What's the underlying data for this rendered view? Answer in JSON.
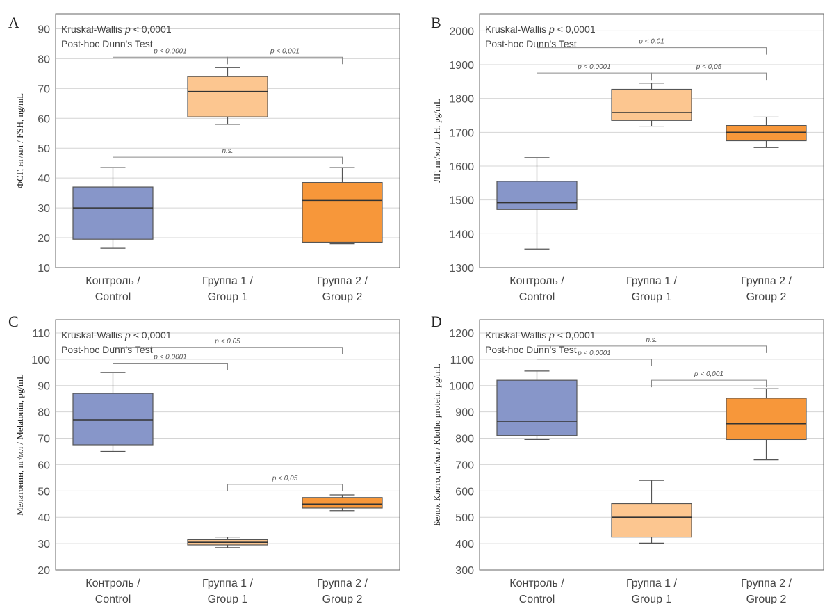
{
  "colors": {
    "control": "#8796c9",
    "group1": "#fcc690",
    "group2": "#f7973a",
    "outline": "#555555",
    "grid": "#d4d4d4",
    "bracket": "#8a8a8a"
  },
  "chart_data": [
    {
      "panel": "A",
      "type": "boxplot",
      "ylabel": "ФСГ, нг/мл / FSH, ng/mL",
      "ylim": [
        10,
        95
      ],
      "yticks": [
        10,
        20,
        30,
        40,
        50,
        60,
        70,
        80,
        90
      ],
      "note1": "Kruskal-Wallis p < 0,0001",
      "note2": "Post-hoc Dunn's Test",
      "categories": [
        {
          "line1": "Контроль /",
          "line2": "Control",
          "colorKey": "control",
          "min": 16.5,
          "q1": 19.5,
          "median": 30,
          "q3": 37,
          "max": 43.5
        },
        {
          "line1": "Группа 1 /",
          "line2": "Group 1",
          "colorKey": "group1",
          "min": 58,
          "q1": 60.5,
          "median": 69,
          "q3": 74,
          "max": 77
        },
        {
          "line1": "Группа 2 /",
          "line2": "Group 2",
          "colorKey": "group2",
          "min": 18,
          "q1": 18.5,
          "median": 32.5,
          "q3": 38.5,
          "max": 43.5
        }
      ],
      "comparisons": [
        {
          "from": 0,
          "to": 1,
          "y": 80.5,
          "label": "p < 0,0001"
        },
        {
          "from": 1,
          "to": 2,
          "y": 80.5,
          "label": "p < 0,001"
        },
        {
          "from": 0,
          "to": 2,
          "y": 47,
          "label": "n.s."
        }
      ]
    },
    {
      "panel": "B",
      "type": "boxplot",
      "ylabel": "ЛГ, пг/мл / LH, pg/mL",
      "ylim": [
        1300,
        2050
      ],
      "yticks": [
        1300,
        1400,
        1500,
        1600,
        1700,
        1800,
        1900,
        2000
      ],
      "note1": "Kruskal-Wallis p < 0,0001",
      "note2": "Post-hoc Dunn's Test",
      "categories": [
        {
          "line1": "Контроль /",
          "line2": "Control",
          "colorKey": "control",
          "min": 1355,
          "q1": 1472,
          "median": 1492,
          "q3": 1555,
          "max": 1625
        },
        {
          "line1": "Группа 1 /",
          "line2": "Group 1",
          "colorKey": "group1",
          "min": 1718,
          "q1": 1735,
          "median": 1758,
          "q3": 1827,
          "max": 1845
        },
        {
          "line1": "Группа 2 /",
          "line2": "Group 2",
          "colorKey": "group2",
          "min": 1655,
          "q1": 1675,
          "median": 1700,
          "q3": 1720,
          "max": 1745
        }
      ],
      "comparisons": [
        {
          "from": 0,
          "to": 2,
          "y": 1950,
          "label": "p < 0,01"
        },
        {
          "from": 0,
          "to": 1,
          "y": 1875,
          "label": "p < 0,0001"
        },
        {
          "from": 1,
          "to": 2,
          "y": 1875,
          "label": "p < 0,05"
        }
      ]
    },
    {
      "panel": "C",
      "type": "boxplot",
      "ylabel": "Мелатонин, пг/мл / Melatonin, pg/mL",
      "ylim": [
        20,
        115
      ],
      "yticks": [
        20,
        30,
        40,
        50,
        60,
        70,
        80,
        90,
        100,
        110
      ],
      "note1": "Kruskal-Wallis p < 0,0001",
      "note2": "Post-hoc Dunn's Test",
      "categories": [
        {
          "line1": "Контроль /",
          "line2": "Control",
          "colorKey": "control",
          "min": 65,
          "q1": 67.5,
          "median": 77,
          "q3": 87,
          "max": 95
        },
        {
          "line1": "Группа 1 /",
          "line2": "Group 1",
          "colorKey": "group1",
          "min": 28.5,
          "q1": 29.5,
          "median": 30.5,
          "q3": 31.5,
          "max": 32.5
        },
        {
          "line1": "Группа 2 /",
          "line2": "Group 2",
          "colorKey": "group2",
          "min": 42.5,
          "q1": 43.5,
          "median": 45,
          "q3": 47.5,
          "max": 48.5
        }
      ],
      "comparisons": [
        {
          "from": 0,
          "to": 2,
          "y": 104.5,
          "label": "p < 0,05"
        },
        {
          "from": 0,
          "to": 1,
          "y": 98.5,
          "label": "p < 0,0001"
        },
        {
          "from": 1,
          "to": 2,
          "y": 52.5,
          "label": "p < 0,05"
        }
      ]
    },
    {
      "panel": "D",
      "type": "boxplot",
      "ylabel": "Белок Клото, пг/мл / Klotho protein, pg/mL",
      "ylim": [
        300,
        1250
      ],
      "yticks": [
        300,
        400,
        500,
        600,
        700,
        800,
        900,
        1000,
        1100,
        1200
      ],
      "note1": "Kruskal-Wallis p < 0,0001",
      "note2": "Post-hoc Dunn's Test",
      "categories": [
        {
          "line1": "Контроль /",
          "line2": "Control",
          "colorKey": "control",
          "min": 795,
          "q1": 810,
          "median": 865,
          "q3": 1020,
          "max": 1055
        },
        {
          "line1": "Группа 1 /",
          "line2": "Group 1",
          "colorKey": "group1",
          "min": 402,
          "q1": 425,
          "median": 500,
          "q3": 552,
          "max": 640
        },
        {
          "line1": "Группа 2 /",
          "line2": "Group 2",
          "colorKey": "group2",
          "min": 718,
          "q1": 795,
          "median": 855,
          "q3": 952,
          "max": 988
        }
      ],
      "comparisons": [
        {
          "from": 0,
          "to": 2,
          "y": 1150,
          "label": "n.s."
        },
        {
          "from": 0,
          "to": 1,
          "y": 1100,
          "label": "p < 0,0001"
        },
        {
          "from": 1,
          "to": 2,
          "y": 1020,
          "label": "p < 0,001"
        }
      ]
    }
  ]
}
